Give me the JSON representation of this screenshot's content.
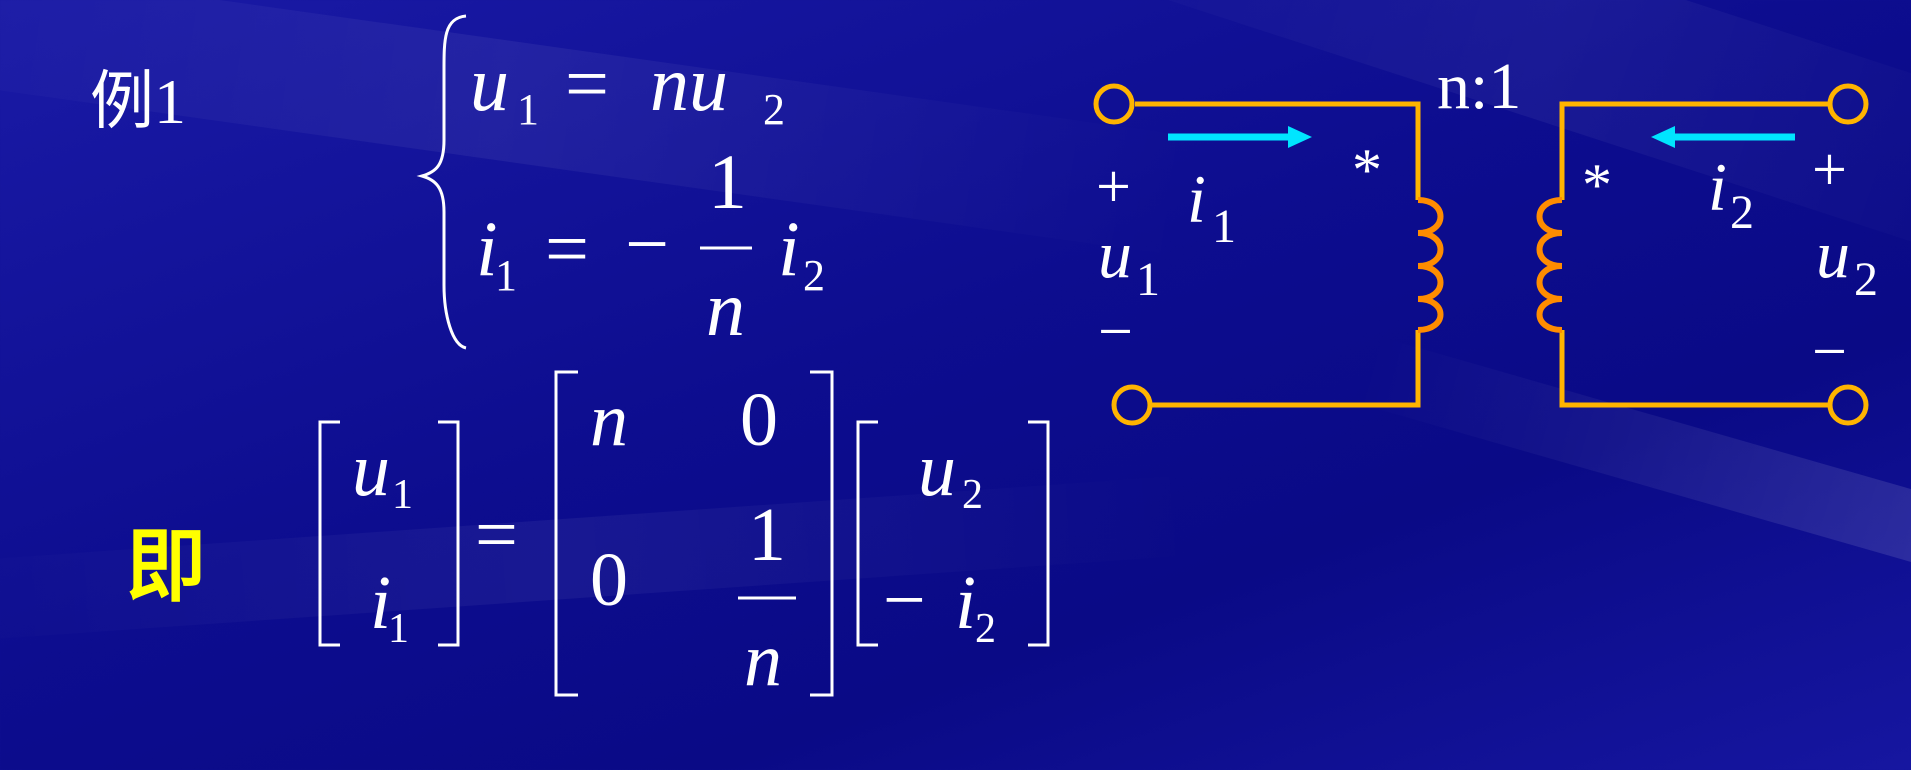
{
  "example_label": "例1",
  "ji_label": "即",
  "equations": {
    "eq1": {
      "lhs": "u",
      "lhs_sub": "1",
      "op": "=",
      "rhs": "nu",
      "rhs_sub": "2"
    },
    "eq2": {
      "lhs": "i",
      "lhs_sub": "1",
      "op": "=",
      "minus": "−",
      "frac_num": "1",
      "frac_den": "n",
      "rhs": "i",
      "rhs_sub": "2"
    }
  },
  "matrix_eq": {
    "left": [
      {
        "sym": "u",
        "sub": "1"
      },
      {
        "sym": "i",
        "sub": "1"
      }
    ],
    "op": "=",
    "matrix": {
      "a11": "n",
      "a12": "0",
      "a21": "0",
      "a22_num": "1",
      "a22_den": "n"
    },
    "right": [
      {
        "sym": "u",
        "sub": "2"
      },
      {
        "minus": "−",
        "sym": "i",
        "sub": "2"
      }
    ]
  },
  "circuit": {
    "ratio": "n:1",
    "dot_left": "*",
    "dot_right": "*",
    "i1": {
      "sym": "i",
      "sub": "1"
    },
    "i2": {
      "sym": "i",
      "sub": "2"
    },
    "u1": {
      "sym": "u",
      "sub": "1",
      "plus": "+",
      "minus": "−"
    },
    "u2": {
      "sym": "u",
      "sub": "2",
      "plus": "+",
      "minus": "−"
    }
  },
  "colors": {
    "background": "#0d0d8f",
    "wire": "#ffb400",
    "coil": "#ff8c00",
    "arrow": "#00e5ff",
    "text": "#ffffff",
    "highlight": "#ffff00"
  }
}
